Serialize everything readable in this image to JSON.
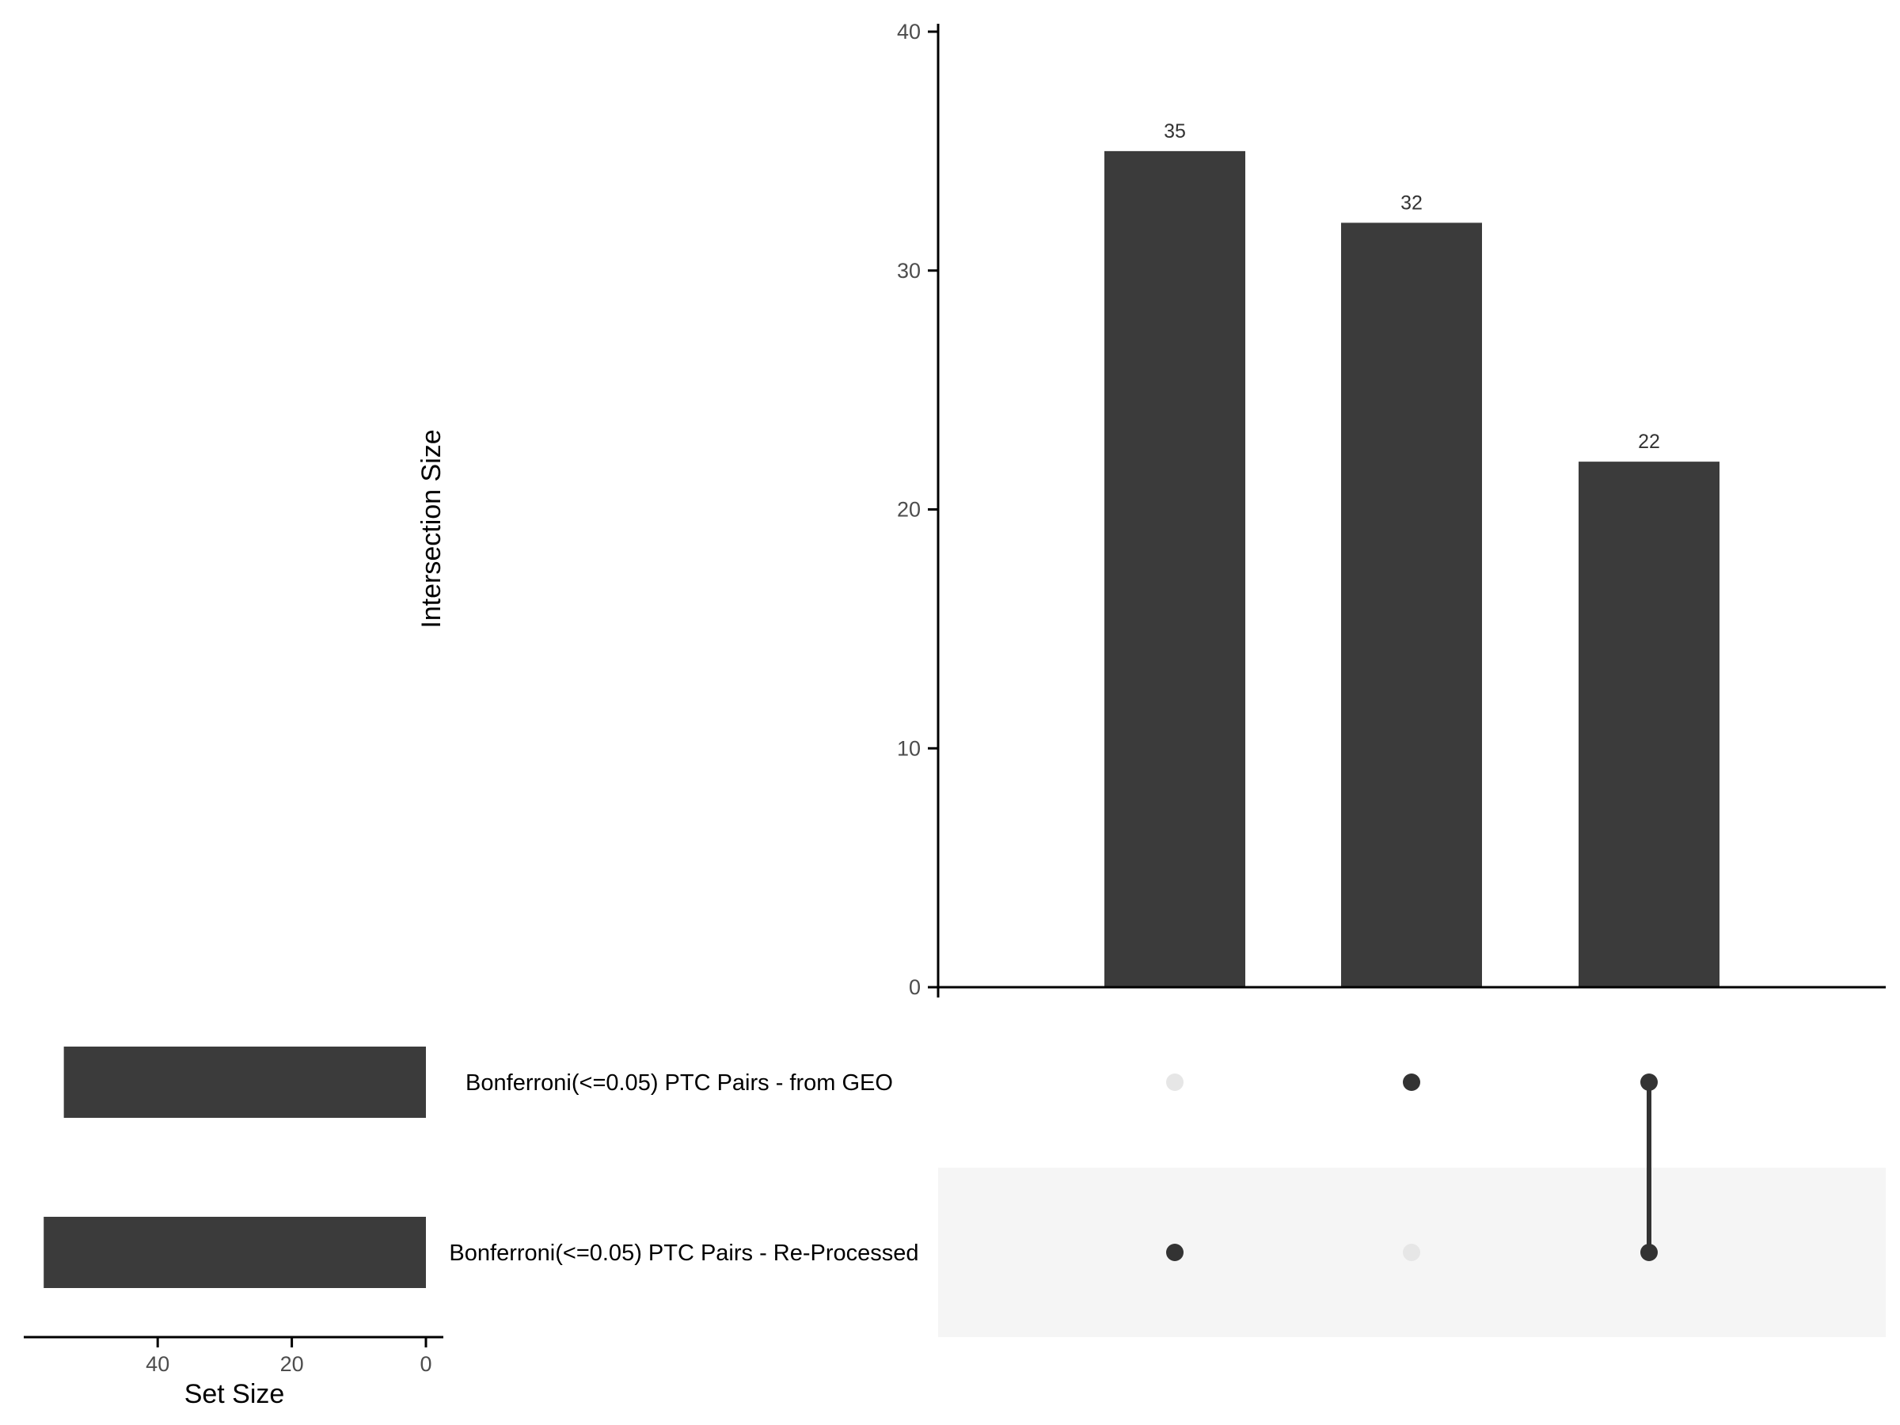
{
  "chart_data": {
    "type": "bar",
    "subtype": "upset",
    "ylabel": "Intersection Size",
    "ylim": [
      0,
      40
    ],
    "yticks": [
      "0",
      "10",
      "20",
      "30",
      "40"
    ],
    "intersections": [
      {
        "value": 35,
        "label": "35",
        "members": [
          false,
          true
        ]
      },
      {
        "value": 32,
        "label": "32",
        "members": [
          true,
          false
        ]
      },
      {
        "value": 22,
        "label": "22",
        "members": [
          true,
          true
        ]
      }
    ],
    "sets": [
      {
        "name": "Bonferroni(<=0.05) PTC Pairs - from GEO",
        "size": 54
      },
      {
        "name": "Bonferroni(<=0.05) PTC Pairs - Re-Processed",
        "size": 57
      }
    ],
    "set_size_axis": {
      "label": "Set Size",
      "ticks": [
        40,
        20,
        0
      ],
      "tick_labels": [
        "40",
        "20",
        "0"
      ],
      "range": [
        60,
        0
      ]
    },
    "colors": {
      "bar": "#3b3b3b",
      "dot_active": "#333333",
      "dot_inactive": "#e6e6e6",
      "stripe": "#f5f5f5",
      "axis": "#000000"
    }
  }
}
